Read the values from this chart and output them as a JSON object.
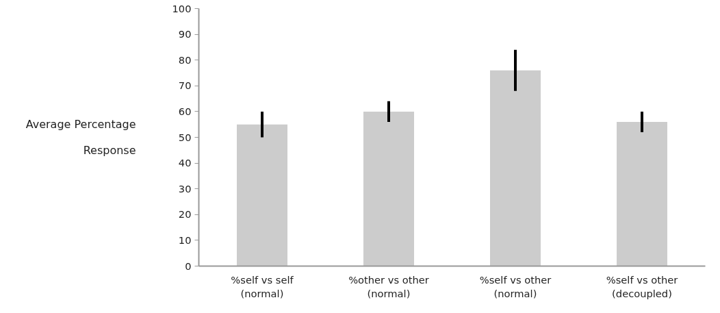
{
  "chart_data": {
    "type": "bar",
    "ylabel": "Average Percentage\nResponse",
    "categories": [
      "%self vs self\n(normal)",
      "%other vs other\n(normal)",
      "%self vs other\n(normal)",
      "%self vs other\n(decoupled)"
    ],
    "values": [
      55,
      60,
      76,
      56
    ],
    "errors": [
      5,
      4,
      8,
      4
    ],
    "color": "#cccccc",
    "ylim": [
      0,
      100
    ],
    "yticks": [
      0,
      10,
      20,
      30,
      40,
      50,
      60,
      70,
      80,
      90,
      100
    ],
    "grid": false
  }
}
